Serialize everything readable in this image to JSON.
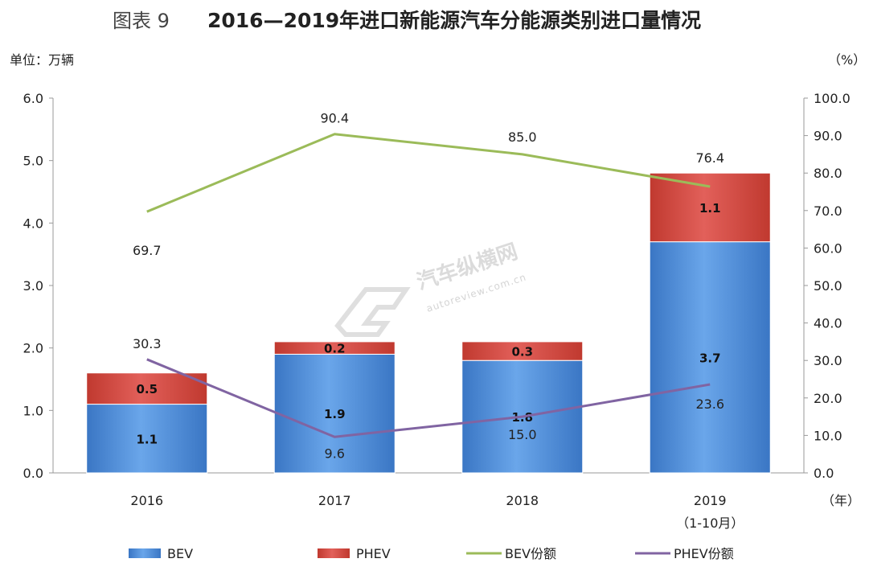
{
  "title": {
    "prefix": "图表 9",
    "main": "2016—2019年进口新能源汽车分能源类别进口量情况"
  },
  "watermark": {
    "brand": "汽车纵横网",
    "url": "autoreview.com.cn"
  },
  "chart_data": {
    "type": "bar",
    "stacked": true,
    "categories": [
      "2016",
      "2017",
      "2018",
      "2019"
    ],
    "category_sublabels": [
      "",
      "",
      "",
      "（1-10月）"
    ],
    "left_axis": {
      "unit_label": "单位：万辆",
      "range": [
        0,
        6
      ],
      "ticks": [
        "0.0",
        "1.0",
        "2.0",
        "3.0",
        "4.0",
        "5.0",
        "6.0"
      ]
    },
    "right_axis": {
      "unit_label": "（%）",
      "range": [
        0,
        100
      ],
      "ticks": [
        "0.0",
        "10.0",
        "20.0",
        "30.0",
        "40.0",
        "50.0",
        "60.0",
        "70.0",
        "80.0",
        "90.0",
        "100.0"
      ]
    },
    "x_unit_label": "（年）",
    "grid": false,
    "legend_position": "bottom",
    "series": [
      {
        "name": "BEV",
        "type": "bar",
        "axis": "left",
        "color": "#4f8fd8",
        "values": [
          1.1,
          1.9,
          1.8,
          3.7
        ],
        "labels": [
          "1.1",
          "1.9",
          "1.8",
          "3.7"
        ]
      },
      {
        "name": "PHEV",
        "type": "bar",
        "axis": "left",
        "color": "#d9463f",
        "values": [
          0.5,
          0.2,
          0.3,
          1.1
        ],
        "labels": [
          "0.5",
          "0.2",
          "0.3",
          "1.1"
        ]
      },
      {
        "name": "BEV份额",
        "type": "line",
        "axis": "right",
        "color": "#9bbb59",
        "values": [
          69.7,
          90.4,
          85.0,
          76.4
        ],
        "labels": [
          "69.7",
          "90.4",
          "85.0",
          "76.4"
        ]
      },
      {
        "name": "PHEV份额",
        "type": "line",
        "axis": "right",
        "color": "#8064a2",
        "values": [
          30.3,
          9.6,
          15.0,
          23.6
        ],
        "labels": [
          "30.3",
          "9.6",
          "15.0",
          "23.6"
        ]
      }
    ]
  }
}
